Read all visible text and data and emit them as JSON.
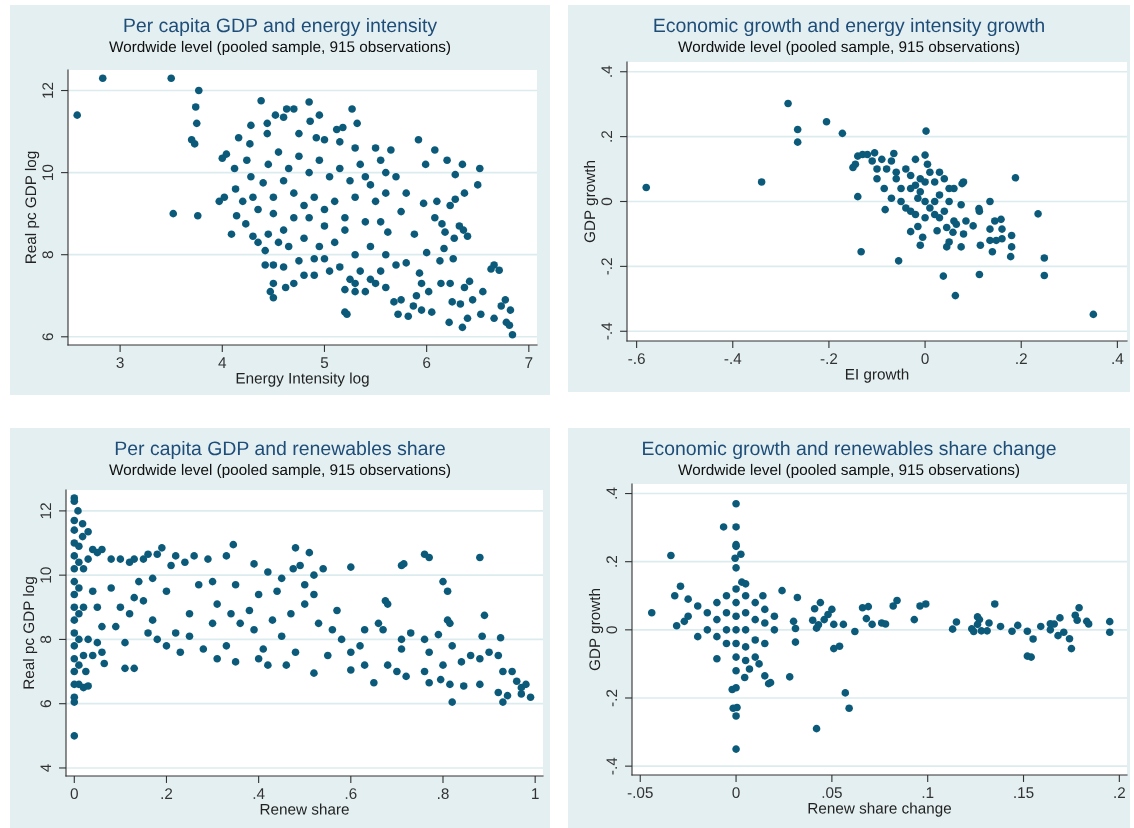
{
  "chart_data": [
    {
      "type": "scatter",
      "title": "Per capita GDP and energy intensity",
      "subtitle": "Wordwide level (pooled sample, 915 observations)",
      "xlabel": "Energy Intensity log",
      "ylabel": "Real pc GDP log",
      "color": "#0b5a7a",
      "marker": "circle",
      "grid": "y",
      "xlim": [
        2.49,
        7.08
      ],
      "ylim": [
        5.8,
        12.5
      ],
      "xticks": [
        3,
        4,
        5,
        6,
        7
      ],
      "yticks": [
        6,
        8,
        10,
        12
      ],
      "x": [
        2.58,
        2.83,
        3.5,
        3.52,
        3.77,
        3.74,
        3.75,
        3.7,
        3.73,
        3.76,
        3.97,
        4.0,
        4.04,
        4.02,
        4.12,
        4.16,
        4.09,
        4.13,
        4.38,
        4.28,
        4.27,
        4.24,
        4.28,
        4.14,
        4.23,
        4.44,
        4.44,
        4.52,
        4.6,
        4.63,
        4.7,
        4.85,
        4.86,
        4.95,
        5.27,
        5.32,
        5.18,
        5.12,
        4.75,
        4.92,
        5.0,
        5.15,
        5.3,
        5.5,
        5.65,
        5.92,
        6.08,
        6.2,
        5.99,
        6.35,
        6.52,
        6.28,
        6.5,
        6.37,
        6.28,
        6.1,
        6.23,
        5.97,
        6.32,
        6.36,
        6.4,
        6.08,
        6.15,
        6.18,
        6.27,
        6.17,
        5.88,
        5.8,
        5.7,
        5.75,
        5.62,
        5.6,
        6.0,
        6.13,
        6.26,
        6.66,
        6.71,
        6.63,
        6.14,
        6.23,
        6.37,
        6.55,
        6.42,
        6.25,
        6.33,
        6.45,
        6.77,
        6.73,
        6.82,
        6.53,
        6.66,
        6.78,
        6.81,
        6.84,
        6.35,
        6.4,
        6.22,
        6.05,
        5.95,
        5.87,
        5.82,
        5.72,
        5.68,
        5.75,
        5.9,
        6.02,
        5.95,
        5.93,
        5.8,
        5.7,
        5.55,
        5.5,
        5.4,
        5.3,
        5.2,
        5.2,
        5.22,
        5.35,
        5.15,
        5.0,
        4.9,
        4.8,
        4.7,
        4.62,
        4.5,
        4.47,
        4.5,
        4.5,
        4.42,
        4.6,
        4.75,
        4.42,
        4.55,
        4.35,
        4.3,
        4.45,
        4.6,
        4.8,
        4.95,
        5.1,
        5.3,
        5.45,
        5.55,
        5.4,
        5.2,
        5.0,
        4.85,
        4.7,
        4.5,
        4.35,
        4.2,
        4.3,
        4.5,
        4.7,
        4.9,
        5.1,
        5.3,
        5.5,
        5.6,
        5.45,
        5.25,
        5.05,
        4.85,
        4.65,
        4.45,
        4.55,
        4.75,
        4.95,
        5.15,
        5.35,
        5.55,
        5.6,
        5.4,
        4.6,
        4.4,
        4.8,
        5.0,
        5.2,
        4.65,
        4.9,
        5.05,
        5.25,
        5.45,
        5.6,
        5.3
      ],
      "values": [
        11.4,
        12.3,
        12.3,
        9.0,
        12.0,
        11.6,
        11.2,
        10.8,
        10.7,
        8.95,
        9.3,
        10.35,
        10.45,
        9.4,
        10.1,
        10.85,
        8.5,
        9.6,
        11.75,
        11.15,
        10.7,
        10.3,
        9.9,
        8.95,
        8.75,
        11.2,
        10.95,
        11.4,
        11.35,
        11.55,
        11.55,
        11.72,
        11.25,
        11.4,
        11.55,
        11.2,
        11.1,
        11.05,
        10.95,
        10.85,
        10.8,
        10.75,
        10.6,
        10.6,
        10.55,
        10.8,
        10.55,
        10.3,
        10.2,
        10.2,
        10.1,
        9.95,
        9.7,
        9.5,
        9.35,
        9.3,
        9.2,
        9.25,
        8.7,
        8.6,
        8.45,
        8.9,
        8.75,
        8.55,
        8.4,
        8.15,
        8.5,
        9.5,
        9.9,
        9.05,
        8.55,
        8.0,
        8.05,
        7.85,
        7.9,
        7.75,
        7.62,
        7.65,
        7.3,
        7.3,
        7.2,
        7.1,
        7.35,
        6.85,
        6.8,
        6.9,
        6.9,
        6.75,
        6.65,
        6.55,
        6.45,
        6.35,
        6.28,
        6.05,
        6.23,
        6.45,
        6.35,
        6.6,
        6.65,
        6.75,
        6.5,
        6.55,
        6.85,
        6.9,
        7.0,
        7.1,
        7.3,
        7.55,
        7.8,
        7.75,
        7.6,
        7.3,
        7.1,
        7.3,
        7.15,
        6.6,
        6.55,
        7.6,
        7.7,
        7.9,
        7.5,
        7.5,
        7.3,
        7.2,
        7.3,
        7.1,
        6.95,
        7.75,
        7.75,
        7.7,
        7.85,
        8.1,
        8.3,
        8.3,
        8.45,
        8.5,
        8.6,
        8.4,
        8.2,
        8.3,
        8.0,
        8.2,
        8.8,
        8.8,
        8.6,
        8.7,
        8.9,
        8.9,
        9.0,
        9.1,
        9.3,
        9.4,
        9.4,
        9.5,
        9.4,
        9.3,
        9.4,
        9.3,
        9.5,
        9.7,
        9.8,
        9.9,
        10.0,
        10.1,
        10.2,
        10.5,
        10.4,
        10.3,
        10.1,
        10.2,
        10.3,
        10.0,
        9.9,
        9.8,
        9.75,
        9.2,
        9.1,
        8.9,
        8.2,
        7.9,
        7.6,
        7.4,
        7.4,
        7.2,
        7.1
      ]
    },
    {
      "type": "scatter",
      "title": "Economic growth and energy intensity growth",
      "subtitle": "Wordwide level (pooled sample, 915 observations)",
      "xlabel": "EI growth",
      "ylabel": "GDP growth",
      "color": "#0b5a7a",
      "marker": "circle",
      "grid": "y",
      "xlim": [
        -0.62,
        0.42
      ],
      "ylim": [
        -0.43,
        0.43
      ],
      "xticks": [
        {
          "value": -0.6,
          "label": "-.6"
        },
        {
          "value": -0.4,
          "label": "-.4"
        },
        {
          "value": -0.2,
          "label": "-.2"
        },
        0,
        {
          "value": 0.2,
          "label": ".2"
        },
        {
          "value": 0.4,
          "label": ".4"
        }
      ],
      "yticks": [
        {
          "value": -0.4,
          "label": "-.4"
        },
        {
          "value": -0.2,
          "label": "-.2"
        },
        0,
        {
          "value": 0.2,
          "label": ".2"
        },
        {
          "value": 0.4,
          "label": ".4"
        }
      ],
      "x": [
        -0.58,
        -0.34,
        -0.285,
        -0.265,
        -0.265,
        -0.205,
        -0.172,
        0.002,
        -0.14,
        -0.133,
        -0.055,
        0.038,
        0.063,
        0.113,
        0.248,
        0.248,
        0.35,
        0.188,
        0.235,
        0.178,
        0.18,
        0.18,
        0.14,
        0.145,
        0.158,
        0.16,
        0.16,
        0.135,
        0.148,
        0.135,
        0.135,
        0.112,
        0.113,
        0.115,
        0.1,
        0.085,
        0.075,
        0.05,
        0.045,
        0.058,
        0.08,
        0.08,
        0.077,
        0.06,
        0.075,
        0.025,
        -0.005,
        -0.01,
        -0.03,
        -0.015,
        -0.083,
        -0.15,
        -0.145,
        -0.14,
        -0.13,
        -0.12,
        -0.105,
        -0.11,
        -0.065,
        -0.09,
        -0.07,
        -0.02,
        0.0,
        0.005,
        -0.1,
        -0.1,
        -0.085,
        -0.07,
        -0.05,
        -0.06,
        -0.04,
        -0.03,
        -0.02,
        -0.01,
        0.0,
        0.01,
        0.02,
        0.03,
        0.04,
        0.05,
        0.03,
        0.02,
        0.01,
        -0.01,
        -0.03,
        -0.05,
        -0.04,
        -0.02,
        0.0,
        0.04,
        0.05,
        0.06,
        -0.06,
        -0.08,
        -0.03,
        0.0,
        0.02,
        -0.015,
        0.045,
        0.03,
        0.065
      ],
      "values": [
        0.043,
        0.06,
        0.302,
        0.222,
        0.183,
        0.246,
        0.21,
        0.217,
        0.015,
        -0.155,
        -0.183,
        -0.23,
        -0.29,
        -0.225,
        -0.228,
        -0.174,
        -0.348,
        0.073,
        -0.038,
        -0.17,
        -0.105,
        -0.14,
        -0.155,
        -0.06,
        -0.055,
        -0.085,
        -0.115,
        -0.12,
        -0.12,
        -0.085,
        0.0,
        -0.022,
        -0.03,
        -0.135,
        -0.075,
        -0.06,
        -0.14,
        -0.125,
        -0.14,
        -0.095,
        -0.1,
        0.06,
        0.055,
        0.04,
        -0.01,
        -0.09,
        -0.11,
        -0.135,
        -0.093,
        -0.077,
        -0.025,
        0.105,
        0.115,
        0.14,
        0.145,
        0.145,
        0.15,
        0.125,
        0.148,
        0.13,
        0.125,
        0.13,
        0.143,
        0.115,
        0.1,
        0.07,
        0.04,
        0.01,
        0.0,
        0.07,
        0.1,
        0.08,
        0.05,
        0.03,
        0.0,
        -0.02,
        -0.04,
        -0.05,
        -0.03,
        0.0,
        0.02,
        0.06,
        0.09,
        0.07,
        0.04,
        0.04,
        -0.02,
        -0.04,
        -0.05,
        0.07,
        0.04,
        -0.06,
        0.09,
        0.1,
        -0.03,
        0.06,
        0.0,
        0.01,
        -0.08,
        0.09,
        -0.07
      ]
    },
    {
      "type": "scatter",
      "title": "Per capita GDP and renewables share",
      "subtitle": "Wordwide level (pooled sample, 915 observations)",
      "xlabel": "Renew share",
      "ylabel": "Real pc GDP log",
      "color": "#0b5a7a",
      "marker": "circle",
      "grid": "y",
      "xlim": [
        -0.018,
        1.017
      ],
      "ylim": [
        3.75,
        12.65
      ],
      "xticks": [
        0,
        {
          "value": 0.2,
          "label": ".2"
        },
        {
          "value": 0.4,
          "label": ".4"
        },
        {
          "value": 0.6,
          "label": ".6"
        },
        {
          "value": 0.8,
          "label": ".8"
        },
        1
      ],
      "yticks": [
        4,
        6,
        8,
        10,
        12
      ],
      "x": [
        0,
        0,
        0.008,
        0,
        0,
        0,
        0,
        0,
        0,
        0,
        0,
        0,
        0,
        0,
        0,
        0,
        0,
        0,
        0,
        0,
        0.018,
        0.018,
        0.03,
        0.01,
        0.01,
        0.01,
        0.01,
        0.01,
        0.01,
        0.01,
        0.02,
        0.02,
        0.02,
        0.02,
        0.03,
        0.025,
        0.03,
        0.04,
        0.05,
        0.06,
        0.04,
        0.05,
        0.06,
        0.05,
        0.06,
        0.065,
        0.04,
        0.03,
        0.08,
        0.1,
        0.08,
        0.1,
        0.09,
        0.11,
        0.13,
        0.11,
        0.12,
        0.13,
        0.14,
        0.12,
        0.13,
        0.15,
        0.16,
        0.18,
        0.19,
        0.17,
        0.15,
        0.17,
        0.16,
        0.18,
        0.2,
        0.21,
        0.22,
        0.24,
        0.26,
        0.27,
        0.25,
        0.22,
        0.2,
        0.23,
        0.25,
        0.29,
        0.3,
        0.31,
        0.3,
        0.28,
        0.31,
        0.33,
        0.345,
        0.35,
        0.34,
        0.33,
        0.36,
        0.35,
        0.39,
        0.4,
        0.38,
        0.39,
        0.41,
        0.4,
        0.42,
        0.42,
        0.45,
        0.44,
        0.43,
        0.45,
        0.46,
        0.48,
        0.475,
        0.49,
        0.47,
        0.48,
        0.51,
        0.52,
        0.54,
        0.5,
        0.52,
        0.5,
        0.53,
        0.52,
        0.55,
        0.57,
        0.56,
        0.58,
        0.6,
        0.6,
        0.6,
        0.63,
        0.62,
        0.63,
        0.65,
        0.66,
        0.67,
        0.675,
        0.68,
        0.68,
        0.7,
        0.71,
        0.715,
        0.71,
        0.71,
        0.72,
        0.73,
        0.76,
        0.76,
        0.77,
        0.77,
        0.76,
        0.77,
        0.79,
        0.8,
        0.81,
        0.81,
        0.815,
        0.8,
        0.795,
        0.82,
        0.82,
        0.815,
        0.84,
        0.845,
        0.86,
        0.88,
        0.89,
        0.885,
        0.88,
        0.88,
        0.9,
        0.92,
        0.925,
        0.93,
        0.92,
        0.93,
        0.94,
        0.95,
        0.96,
        0.97,
        0.97,
        0.98,
        0.99
      ],
      "values": [
        12.4,
        12.3,
        12.0,
        11.7,
        11.4,
        11.0,
        10.6,
        10.2,
        9.8,
        9.4,
        9.0,
        8.6,
        8.2,
        7.8,
        7.4,
        7.0,
        6.6,
        6.2,
        6.05,
        5.0,
        11.6,
        11.2,
        11.35,
        10.9,
        10.4,
        9.6,
        8.8,
        8.0,
        7.2,
        6.6,
        10.2,
        9.0,
        7.5,
        6.5,
        6.55,
        7.0,
        10.5,
        10.8,
        10.7,
        10.8,
        9.5,
        9.0,
        8.4,
        7.9,
        7.6,
        7.25,
        7.5,
        8.0,
        10.5,
        10.5,
        9.6,
        9.0,
        8.4,
        7.1,
        7.1,
        7.9,
        8.8,
        9.3,
        9.8,
        10.4,
        10.5,
        10.5,
        10.65,
        10.65,
        10.85,
        9.9,
        9.2,
        8.6,
        8.2,
        8.0,
        9.5,
        10.3,
        10.6,
        10.4,
        10.6,
        9.7,
        8.8,
        8.2,
        7.8,
        7.6,
        8.1,
        10.5,
        9.8,
        9.1,
        8.5,
        7.7,
        7.4,
        10.6,
        10.95,
        9.7,
        8.8,
        7.8,
        8.5,
        7.3,
        10.35,
        9.4,
        8.9,
        8.3,
        7.7,
        7.4,
        7.2,
        10.1,
        9.9,
        9.5,
        8.6,
        8.1,
        7.2,
        10.85,
        10.2,
        10.3,
        8.8,
        7.6,
        10.7,
        10.0,
        10.2,
        9.7,
        9.4,
        9.1,
        8.5,
        6.95,
        7.5,
        8.9,
        8.3,
        8.0,
        10.25,
        7.6,
        7.05,
        8.3,
        7.8,
        7.2,
        6.65,
        8.5,
        8.3,
        9.2,
        9.1,
        7.2,
        7.0,
        10.3,
        10.35,
        7.7,
        8.0,
        6.85,
        8.2,
        8.0,
        10.65,
        10.55,
        7.6,
        7.0,
        6.65,
        8.15,
        9.8,
        9.5,
        8.6,
        8.5,
        7.2,
        6.75,
        7.8,
        6.05,
        6.6,
        7.3,
        6.55,
        7.5,
        10.55,
        8.75,
        8.1,
        7.4,
        6.6,
        7.6,
        7.5,
        8.05,
        7.0,
        6.35,
        6.05,
        6.25,
        7.0,
        6.7,
        6.5,
        6.3,
        6.6,
        6.2
      ]
    },
    {
      "type": "scatter",
      "title": "Economic growth and renewables share change",
      "subtitle": "Wordwide level (pooled sample, 915 observations)",
      "xlabel": "Renew share change",
      "ylabel": "GDP growth",
      "color": "#0b5a7a",
      "marker": "circle",
      "grid": "y",
      "xlim": [
        -0.0543,
        0.204
      ],
      "ylim": [
        -0.426,
        0.428
      ],
      "xticks": [
        {
          "value": -0.05,
          "label": "-.05"
        },
        0,
        {
          "value": 0.05,
          "label": ".05"
        },
        {
          "value": 0.1,
          "label": ".1"
        },
        {
          "value": 0.15,
          "label": ".15"
        },
        {
          "value": 0.2,
          "label": ".2"
        }
      ],
      "yticks": [
        {
          "value": -0.4,
          "label": "-.4"
        },
        {
          "value": -0.2,
          "label": "-.2"
        },
        0,
        {
          "value": 0.2,
          "label": ".2"
        },
        {
          "value": 0.4,
          "label": ".4"
        }
      ],
      "x": [
        0,
        0,
        -0.0065,
        0,
        0,
        0.0025,
        -0.0005,
        0,
        -0.034,
        -0.044,
        -0.029,
        -0.032,
        -0.031,
        -0.01,
        0,
        0,
        0.0005,
        -0.0015,
        -0.002,
        0,
        0.0045,
        0.028,
        0.015,
        0.017,
        0.018,
        0.057,
        0.059,
        0.042,
        0.024,
        0.032,
        0.014,
        0.03,
        0.031,
        0.031,
        0.041,
        0.044,
        0.04,
        0.046,
        0.048,
        0.05,
        0.043,
        0.042,
        0.051,
        0.056,
        0.051,
        0.054,
        0.062,
        0.066,
        0.069,
        0.068,
        0.071,
        0.076,
        0.078,
        0.082,
        0.084,
        0.093,
        0.096,
        0.099,
        0.113,
        0.115,
        0.123,
        0.124,
        0.126,
        0.127,
        0.126,
        0.128,
        0.131,
        0.132,
        0.135,
        0.138,
        0.144,
        0.147,
        0.152,
        0.152,
        0.154,
        0.155,
        0.159,
        0.164,
        0.164,
        0.166,
        0.169,
        0.168,
        0.171,
        0.174,
        0.175,
        0.177,
        0.178,
        0.179,
        0.183,
        0.184,
        0.195,
        0.195,
        -0.02,
        -0.02,
        -0.015,
        -0.015,
        -0.01,
        -0.01,
        -0.01,
        -0.005,
        -0.005,
        -0.005,
        -0.005,
        0,
        0,
        0,
        0,
        0,
        0,
        0,
        0.005,
        0.005,
        0.005,
        0.005,
        0.005,
        0.01,
        0.01,
        0.01,
        0.01,
        0.015,
        0.015,
        0.015,
        0.02,
        0.02,
        -0.025,
        -0.025,
        -0.027,
        0.003,
        0.005,
        0.012,
        0.007
      ],
      "values": [
        0.37,
        0.302,
        0.302,
        0.25,
        0.245,
        0.222,
        0.21,
        0.182,
        0.218,
        0.05,
        0.128,
        0.1,
        0.012,
        -0.085,
        -0.35,
        -0.253,
        -0.228,
        -0.23,
        -0.175,
        -0.17,
        -0.14,
        -0.138,
        -0.135,
        -0.158,
        -0.155,
        -0.185,
        -0.23,
        -0.29,
        0.115,
        0.095,
        0.1,
        0.025,
        0.004,
        -0.036,
        0.062,
        0.08,
        0.028,
        0.03,
        0.045,
        0.06,
        0.015,
        0.005,
        0.016,
        0.016,
        -0.055,
        -0.048,
        -0.005,
        0.065,
        0.068,
        0.033,
        0.016,
        0.02,
        0.017,
        0.07,
        0.086,
        0.03,
        0.07,
        0.076,
        0.002,
        0.023,
        0.003,
        -0.005,
        0.038,
        0.03,
        0.016,
        -0.003,
        -0.003,
        0.02,
        0.076,
        0.01,
        -0.004,
        0.013,
        -0.077,
        -0.004,
        -0.08,
        -0.027,
        0.01,
        0.018,
        0.0,
        0.017,
        0.035,
        -0.017,
        -0.007,
        -0.026,
        -0.055,
        0.043,
        0.028,
        0.065,
        0.025,
        0.017,
        0.024,
        -0.007,
        0.07,
        -0.02,
        0.05,
        0.0,
        0.08,
        0.03,
        -0.02,
        0.1,
        0.05,
        0.0,
        -0.04,
        0.12,
        0.08,
        0.04,
        0.0,
        -0.04,
        -0.08,
        -0.12,
        0.1,
        0.05,
        0.0,
        -0.05,
        -0.09,
        0.08,
        0.03,
        -0.03,
        -0.08,
        0.06,
        0.02,
        -0.04,
        0.04,
        0.0,
        0.09,
        0.04,
        0.025,
        0.14,
        0.135,
        -0.1,
        -0.115
      ]
    }
  ]
}
